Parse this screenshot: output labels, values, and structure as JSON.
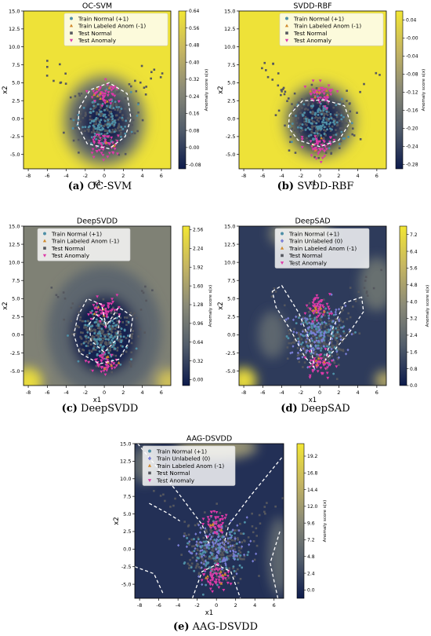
{
  "chart_data": [
    {
      "type": "heatmap",
      "title": "OC-SVM",
      "xlabel": "x1",
      "ylabel": "x2",
      "xlim": [
        -8.5,
        7
      ],
      "ylim": [
        -7,
        15
      ],
      "xticks": [
        -8,
        -6,
        -4,
        -2,
        0,
        2,
        4,
        6
      ],
      "yticks": [
        -5.0,
        -2.5,
        0.0,
        2.5,
        5.0,
        7.5,
        10.0,
        12.5,
        15.0
      ],
      "colorbar_label": "Anomaly score s(x)",
      "colorbar_range": [
        -0.1,
        0.64
      ],
      "colorbar_ticks": [
        "0.64",
        "0.56",
        "0.48",
        "0.40",
        "0.32",
        "0.24",
        "0.16",
        "0.08",
        "0.00",
        "-0.08"
      ],
      "colormap": [
        "#0d1b4c",
        "#525d6b",
        "#8a8a78",
        "#c6b662",
        "#f2e634"
      ],
      "background_level": 0.98,
      "legend": [
        "Train Normal (+1)",
        "Train Labeled Anom (-1)",
        "Test Normal",
        "Test Anomaly"
      ],
      "legend_position": "top",
      "caption_letter": "(a)",
      "caption_text": "OC-SVM"
    },
    {
      "type": "heatmap",
      "title": "SVDD-RBF",
      "xlabel": "x1",
      "ylabel": "x2",
      "xlim": [
        -8.5,
        7
      ],
      "ylim": [
        -7,
        15
      ],
      "xticks": [
        -8,
        -6,
        -4,
        -2,
        0,
        2,
        4,
        6
      ],
      "yticks": [
        -5.0,
        -2.5,
        0.0,
        2.5,
        5.0,
        7.5,
        10.0,
        12.5,
        15.0
      ],
      "colorbar_label": "Anomaly score s(x)",
      "colorbar_range": [
        -0.29,
        0.06
      ],
      "colorbar_ticks": [
        "0.04",
        "-0.00",
        "-0.04",
        "-0.08",
        "-0.12",
        "-0.16",
        "-0.20",
        "-0.24",
        "-0.28"
      ],
      "colormap": [
        "#0d1b4c",
        "#525d6b",
        "#8a8a78",
        "#c6b662",
        "#f2e634"
      ],
      "background_level": 0.98,
      "legend": [
        "Train Normal (+1)",
        "Train Labeled Anom (-1)",
        "Test Normal",
        "Test Anomaly"
      ],
      "legend_position": "top-right",
      "caption_letter": "(b)",
      "caption_text": "SVDD-RBF"
    },
    {
      "type": "heatmap",
      "title": "DeepSVDD",
      "xlabel": "x1",
      "ylabel": "x2",
      "xlim": [
        -8.5,
        7
      ],
      "ylim": [
        -7,
        15
      ],
      "xticks": [
        -8,
        -6,
        -4,
        -2,
        0,
        2,
        4,
        6
      ],
      "yticks": [
        -5.0,
        -2.5,
        0.0,
        2.5,
        5.0,
        7.5,
        10.0,
        12.5,
        15.0
      ],
      "colorbar_label": "Anomaly score s(x)",
      "colorbar_range": [
        -0.1,
        2.62
      ],
      "colorbar_ticks": [
        "2.56",
        "2.24",
        "1.92",
        "1.60",
        "1.28",
        "0.96",
        "0.64",
        "0.32",
        "0.00"
      ],
      "colormap": [
        "#0d1b4c",
        "#525d6b",
        "#8a8a78",
        "#c6b662",
        "#f2e634"
      ],
      "background_level": 0.45,
      "legend": [
        "Train Normal (+1)",
        "Train Labeled Anom (-1)",
        "Test Normal",
        "Test Anomaly"
      ],
      "legend_position": "top",
      "caption_letter": "(c)",
      "caption_text": "DeepSVDD"
    },
    {
      "type": "heatmap",
      "title": "DeepSAD",
      "xlabel": "x1",
      "ylabel": "x2",
      "xlim": [
        -8.5,
        7
      ],
      "ylim": [
        -7,
        15
      ],
      "xticks": [
        -8,
        -6,
        -4,
        -2,
        0,
        2,
        4,
        6
      ],
      "yticks": [
        -5.0,
        -2.5,
        0.0,
        2.5,
        5.0,
        7.5,
        10.0,
        12.5,
        15.0
      ],
      "colorbar_label": "Anomaly score s(x)",
      "colorbar_range": [
        0.0,
        7.6
      ],
      "colorbar_ticks": [
        "7.2",
        "6.4",
        "5.6",
        "4.8",
        "4.0",
        "3.2",
        "2.4",
        "1.6",
        "0.8",
        "0.0"
      ],
      "colormap": [
        "#0d1b4c",
        "#525d6b",
        "#8a8a78",
        "#c6b662",
        "#f2e634"
      ],
      "background_level": 0.12,
      "legend": [
        "Train Normal (+1)",
        "Train Unlabeled (0)",
        "Train Labeled Anom (-1)",
        "Test Normal",
        "Test Anomaly"
      ],
      "legend_position": "top",
      "caption_letter": "(d)",
      "caption_text": "DeepSAD"
    },
    {
      "type": "heatmap",
      "title": "AAG-DSVDD",
      "xlabel": "x1",
      "ylabel": "x2",
      "xlim": [
        -8.5,
        7
      ],
      "ylim": [
        -7,
        15
      ],
      "xticks": [
        -8,
        -6,
        -4,
        -2,
        0,
        2,
        4,
        6
      ],
      "yticks": [
        -5.0,
        -2.5,
        0.0,
        2.5,
        5.0,
        7.5,
        10.0,
        12.5,
        15.0
      ],
      "colorbar_label": "Anomaly score s(x)",
      "colorbar_range": [
        -1.2,
        21.0
      ],
      "colorbar_ticks": [
        "19.2",
        "16.8",
        "14.4",
        "12.0",
        "9.6",
        "7.2",
        "4.8",
        "2.4",
        "0.0"
      ],
      "colormap": [
        "#0d1b4c",
        "#525d6b",
        "#8a8a78",
        "#c6b662",
        "#f2e634"
      ],
      "background_level": 0.08,
      "legend": [
        "Train Normal (+1)",
        "Train Unlabeled (0)",
        "Train Labeled Anom (-1)",
        "Test Normal",
        "Test Anomaly"
      ],
      "legend_position": "top",
      "caption_letter": "(e)",
      "caption_text": "AAG-DSVDD"
    }
  ],
  "marker_colors": {
    "train_normal": "#4e8fa6",
    "train_unlabeled": "#7b7fd6",
    "train_labeled_anom": "#d08a2e",
    "test_normal": "#55575e",
    "test_anomaly": "#dd3aa8"
  },
  "boundary_color": "#ffffff"
}
